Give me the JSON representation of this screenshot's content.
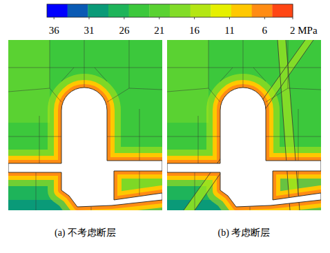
{
  "chart_data": {
    "type": "contour",
    "colorbar": {
      "range": [
        37,
        2
      ],
      "ticks": [
        36,
        31,
        26,
        21,
        16,
        11,
        6,
        {
          "value": 2,
          "label": "2 MPa"
        }
      ],
      "colors": [
        "#0000ff",
        "#0a5ab4",
        "#0a9a78",
        "#1eb45a",
        "#3cc83c",
        "#5ad232",
        "#82dc28",
        "#b4e614",
        "#e6f000",
        "#ffc800",
        "#ff8c14",
        "#ff4614"
      ]
    },
    "panels": [
      {
        "caption": "(a) 不考虑断层",
        "fault": false
      },
      {
        "caption": "(b) 考虑断层",
        "fault": true
      }
    ]
  }
}
